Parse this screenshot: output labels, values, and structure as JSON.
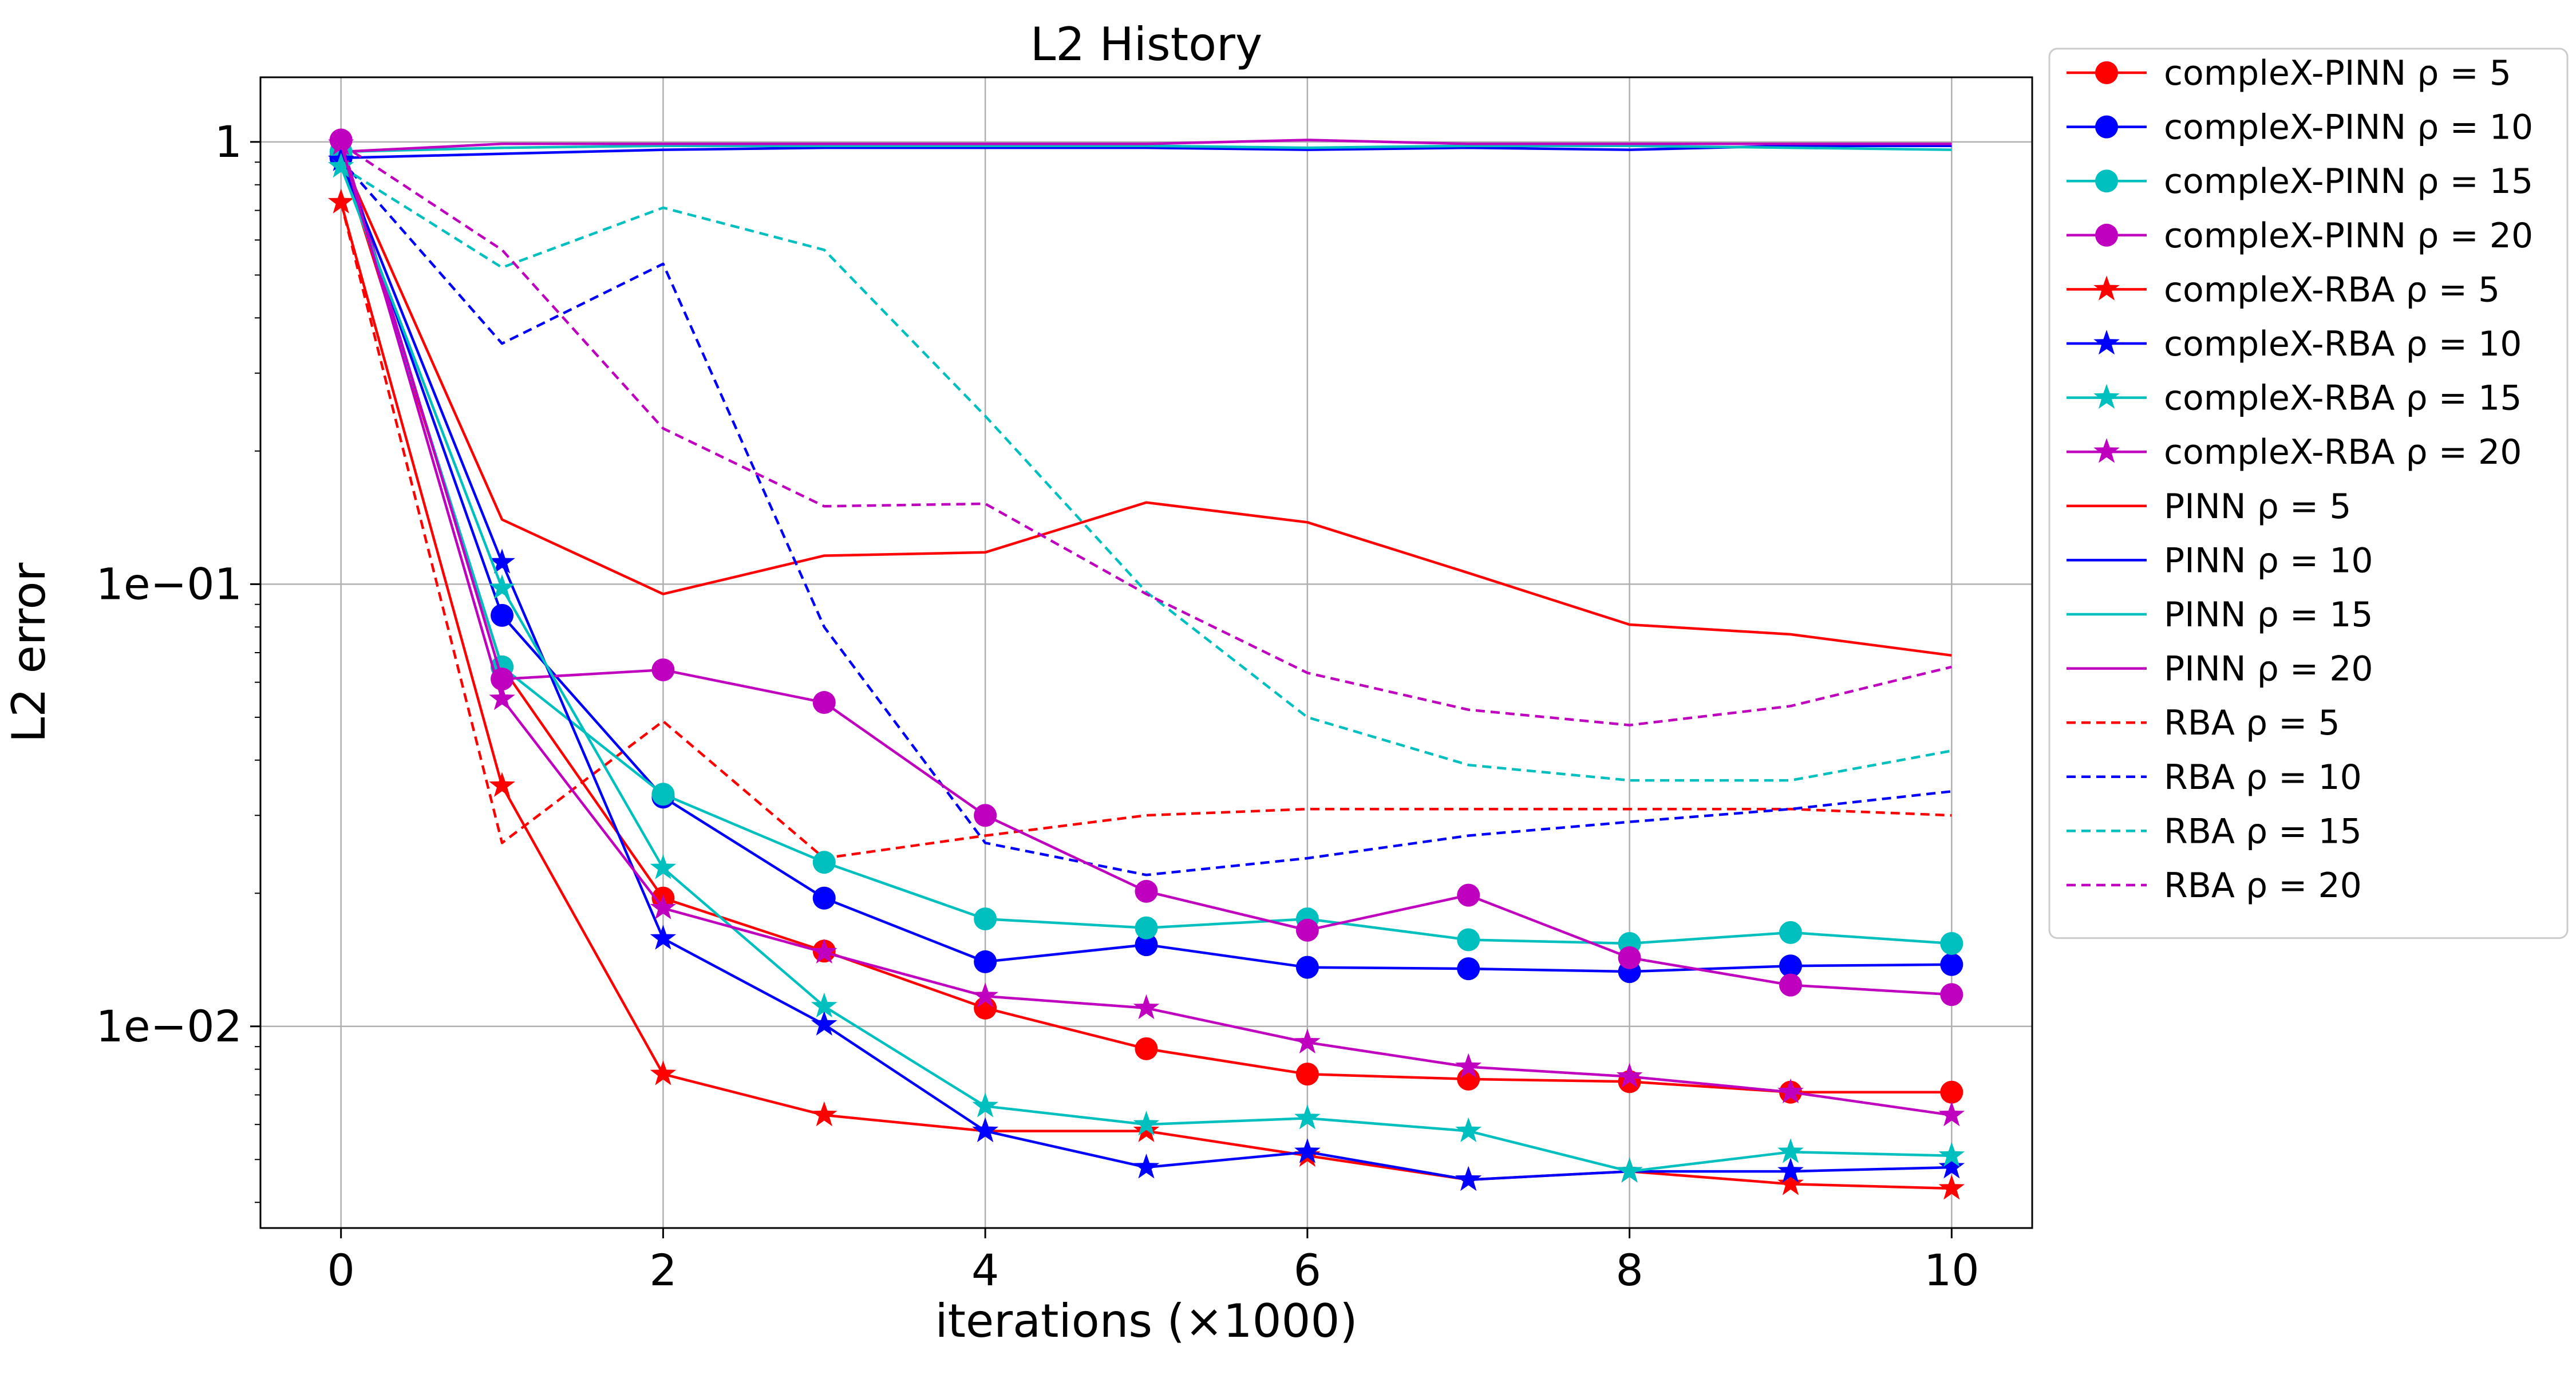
{
  "chart_data": {
    "type": "line",
    "title": "L2 History",
    "xlabel": "iterations (×1000)",
    "ylabel": "L2 error",
    "yscale": "log",
    "xlim": [
      -0.5,
      10.5
    ],
    "ylim": [
      0.0035,
      1.4
    ],
    "grid": true,
    "legend_position": "outside right",
    "x_ticks": [
      {
        "value": 0,
        "label": "0"
      },
      {
        "value": 2,
        "label": "2"
      },
      {
        "value": 4,
        "label": "4"
      },
      {
        "value": 6,
        "label": "6"
      },
      {
        "value": 8,
        "label": "8"
      },
      {
        "value": 10,
        "label": "10"
      }
    ],
    "y_ticks": [
      {
        "value": 1,
        "label": "1"
      },
      {
        "value": 0.1,
        "label": "1e−01"
      },
      {
        "value": 0.01,
        "label": "1e−02"
      }
    ],
    "x": [
      0,
      1,
      2,
      3,
      4,
      5,
      6,
      7,
      8,
      9,
      10
    ],
    "series": [
      {
        "name": "compleX-PINN",
        "rho": "ρ = 5",
        "color": "#ff0000",
        "dash": "solid",
        "marker": "circle",
        "values": [
          0.93,
          0.065,
          0.0195,
          0.0148,
          0.011,
          0.0089,
          0.0078,
          0.0076,
          0.0075,
          0.0071,
          0.0071
        ]
      },
      {
        "name": "compleX-PINN",
        "rho": "ρ = 10",
        "color": "#0000ff",
        "dash": "solid",
        "marker": "circle",
        "values": [
          0.92,
          0.085,
          0.033,
          0.0195,
          0.014,
          0.0153,
          0.0136,
          0.0135,
          0.0133,
          0.0137,
          0.0138
        ]
      },
      {
        "name": "compleX-PINN",
        "rho": "ρ = 15",
        "color": "#00bfbf",
        "dash": "solid",
        "marker": "circle",
        "values": [
          0.95,
          0.065,
          0.0335,
          0.0235,
          0.0175,
          0.0167,
          0.0175,
          0.0157,
          0.0154,
          0.0163,
          0.0154
        ]
      },
      {
        "name": "compleX-PINN",
        "rho": "ρ = 20",
        "color": "#bf00bf",
        "dash": "solid",
        "marker": "circle",
        "values": [
          1.01,
          0.061,
          0.064,
          0.054,
          0.03,
          0.0202,
          0.0165,
          0.0198,
          0.0143,
          0.0124,
          0.0118
        ]
      },
      {
        "name": "compleX-RBA",
        "rho": "ρ = 5",
        "color": "#ff0000",
        "dash": "solid",
        "marker": "star",
        "values": [
          0.73,
          0.035,
          0.0078,
          0.0063,
          0.0058,
          0.0058,
          0.0051,
          0.0045,
          0.0047,
          0.0044,
          0.0043
        ]
      },
      {
        "name": "compleX-RBA",
        "rho": "ρ = 10",
        "color": "#0000ff",
        "dash": "solid",
        "marker": "star",
        "values": [
          0.91,
          0.112,
          0.0158,
          0.0101,
          0.0058,
          0.0048,
          0.0052,
          0.0045,
          0.0047,
          0.0047,
          0.0048
        ]
      },
      {
        "name": "compleX-RBA",
        "rho": "ρ = 15",
        "color": "#00bfbf",
        "dash": "solid",
        "marker": "star",
        "values": [
          0.88,
          0.098,
          0.0228,
          0.0111,
          0.0066,
          0.006,
          0.0062,
          0.0058,
          0.0047,
          0.0052,
          0.0051
        ]
      },
      {
        "name": "compleX-RBA",
        "rho": "ρ = 20",
        "color": "#bf00bf",
        "dash": "solid",
        "marker": "star",
        "values": [
          0.99,
          0.055,
          0.0185,
          0.0147,
          0.0117,
          0.011,
          0.0092,
          0.0081,
          0.0077,
          0.0071,
          0.0063
        ]
      },
      {
        "name": "PINN",
        "rho": "ρ = 5",
        "color": "#ff0000",
        "dash": "solid",
        "marker": "none",
        "values": [
          0.93,
          0.14,
          0.095,
          0.116,
          0.118,
          0.153,
          0.138,
          0.106,
          0.081,
          0.077,
          0.069
        ]
      },
      {
        "name": "PINN",
        "rho": "ρ = 10",
        "color": "#0000ff",
        "dash": "solid",
        "marker": "none",
        "values": [
          0.92,
          0.94,
          0.96,
          0.97,
          0.97,
          0.97,
          0.96,
          0.97,
          0.96,
          0.98,
          0.98
        ]
      },
      {
        "name": "PINN",
        "rho": "ρ = 15",
        "color": "#00bfbf",
        "dash": "solid",
        "marker": "none",
        "values": [
          0.95,
          0.97,
          0.98,
          0.98,
          0.98,
          0.98,
          0.97,
          0.98,
          0.98,
          0.97,
          0.96
        ]
      },
      {
        "name": "PINN",
        "rho": "ρ = 20",
        "color": "#bf00bf",
        "dash": "solid",
        "marker": "none",
        "values": [
          0.95,
          0.99,
          0.99,
          0.99,
          0.99,
          0.99,
          1.01,
          0.99,
          0.99,
          0.99,
          0.99
        ]
      },
      {
        "name": "RBA",
        "rho": "ρ = 5",
        "color": "#ff0000",
        "dash": "dashed",
        "marker": "none",
        "values": [
          0.73,
          0.026,
          0.049,
          0.024,
          0.027,
          0.03,
          0.031,
          0.031,
          0.031,
          0.031,
          0.03
        ]
      },
      {
        "name": "RBA",
        "rho": "ρ = 10",
        "color": "#0000ff",
        "dash": "dashed",
        "marker": "none",
        "values": [
          0.91,
          0.35,
          0.53,
          0.08,
          0.026,
          0.022,
          0.024,
          0.027,
          0.029,
          0.031,
          0.034
        ]
      },
      {
        "name": "RBA",
        "rho": "ρ = 15",
        "color": "#00bfbf",
        "dash": "dashed",
        "marker": "none",
        "values": [
          0.88,
          0.52,
          0.71,
          0.57,
          0.24,
          0.096,
          0.05,
          0.039,
          0.036,
          0.036,
          0.042
        ]
      },
      {
        "name": "RBA",
        "rho": "ρ = 20",
        "color": "#bf00bf",
        "dash": "dashed",
        "marker": "none",
        "values": [
          0.99,
          0.57,
          0.225,
          0.15,
          0.152,
          0.095,
          0.063,
          0.052,
          0.048,
          0.053,
          0.065
        ]
      }
    ]
  }
}
